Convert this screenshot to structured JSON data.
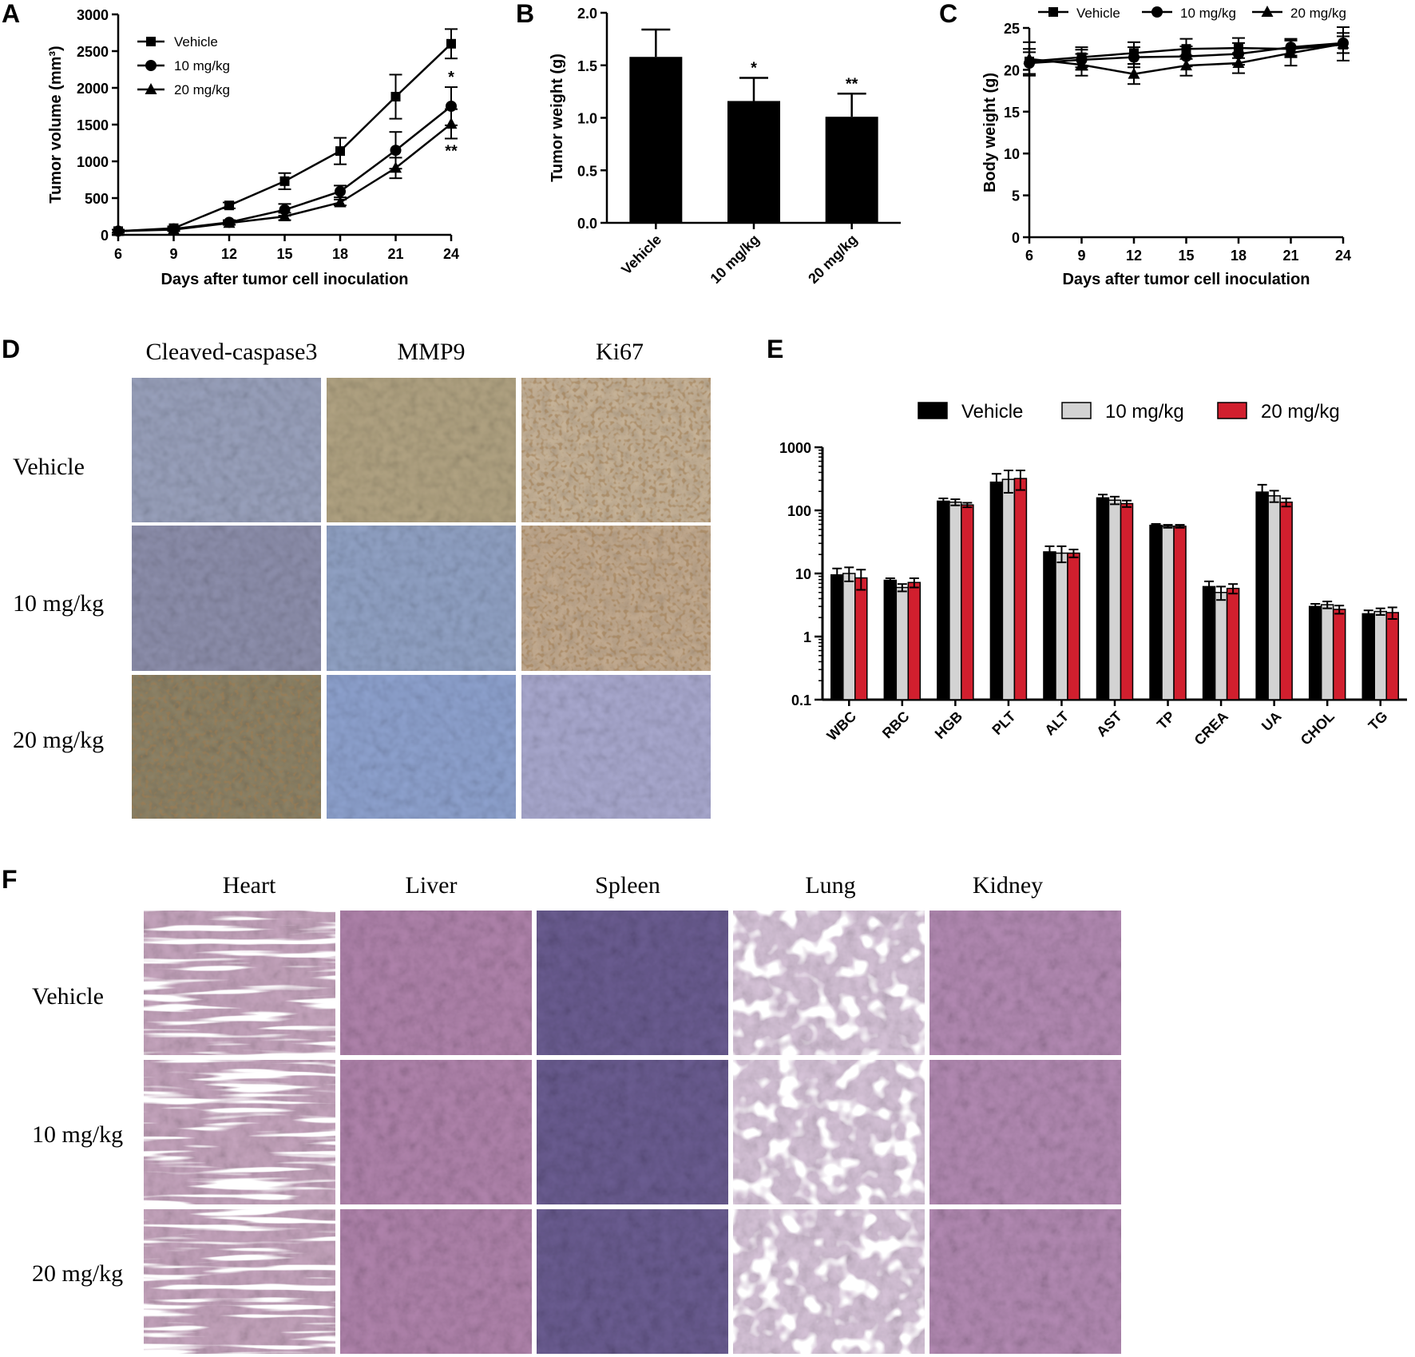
{
  "panels": {
    "a": "A",
    "b": "B",
    "c": "C",
    "d": "D",
    "e": "E",
    "f": "F"
  },
  "colors": {
    "vehicle": "#000000",
    "mid": "#d3d3d3",
    "high": "#d11f2e",
    "ihc_blue": "#8f9fc8",
    "ihc_brown": "#b38a55",
    "he_pink": "#c09bc0",
    "he_purple": "#5e4f88"
  },
  "chart_data": [
    {
      "id": "A",
      "type": "line",
      "xlabel": "Days after tumor cell inoculation",
      "ylabel": "Tumor volume (mm³)",
      "x": [
        6,
        9,
        12,
        15,
        18,
        21,
        24
      ],
      "xlim": [
        6,
        24
      ],
      "ylim": [
        0,
        3000
      ],
      "yticks": [
        0,
        500,
        1000,
        1500,
        2000,
        2500,
        3000
      ],
      "legend_position": "top-left",
      "series": [
        {
          "name": "Vehicle",
          "marker": "square",
          "values": [
            50,
            90,
            400,
            730,
            1140,
            1880,
            2600
          ],
          "errors": [
            20,
            25,
            40,
            110,
            180,
            300,
            200
          ]
        },
        {
          "name": "10 mg/kg",
          "marker": "circle",
          "values": [
            50,
            80,
            170,
            340,
            590,
            1150,
            1750
          ],
          "errors": [
            20,
            20,
            30,
            80,
            80,
            250,
            260
          ]
        },
        {
          "name": "20 mg/kg",
          "marker": "triangle",
          "values": [
            50,
            70,
            160,
            250,
            440,
            910,
            1510
          ],
          "errors": [
            20,
            20,
            25,
            50,
            40,
            140,
            200
          ]
        }
      ],
      "annotations": [
        {
          "series": "10 mg/kg",
          "x": 24,
          "text": "*"
        },
        {
          "series": "20 mg/kg",
          "x": 24,
          "text": "**"
        }
      ]
    },
    {
      "id": "B",
      "type": "bar",
      "ylabel": "Tumor weight (g)",
      "categories": [
        "Vehicle",
        "10 mg/kg",
        "20 mg/kg"
      ],
      "values": [
        1.58,
        1.16,
        1.01
      ],
      "errors": [
        0.26,
        0.22,
        0.22
      ],
      "ylim": [
        0,
        2.0
      ],
      "yticks": [
        "0.0",
        "0.5",
        "1.0",
        "1.5",
        "2.0"
      ],
      "annotations": [
        "",
        "*",
        "**"
      ]
    },
    {
      "id": "C",
      "type": "line",
      "xlabel": "Days after tumor cell inoculation",
      "ylabel": "Body weight (g)",
      "x": [
        6,
        9,
        12,
        15,
        18,
        21,
        24
      ],
      "xlim": [
        6,
        24
      ],
      "ylim": [
        0,
        25
      ],
      "yticks": [
        0,
        5,
        10,
        15,
        20,
        25
      ],
      "legend_position": "top",
      "series": [
        {
          "name": "Vehicle",
          "marker": "square",
          "values": [
            21.0,
            21.5,
            22.0,
            22.5,
            22.6,
            22.5,
            23.0
          ],
          "errors": [
            1.5,
            1.2,
            1.3,
            1.2,
            1.2,
            1.0,
            1.0
          ]
        },
        {
          "name": "10 mg/kg",
          "marker": "circle",
          "values": [
            20.8,
            21.2,
            21.5,
            21.6,
            21.9,
            22.7,
            23.2
          ],
          "errors": [
            1.3,
            1.2,
            1.2,
            1.2,
            1.3,
            1.0,
            1.2
          ]
        },
        {
          "name": "20 mg/kg",
          "marker": "triangle",
          "values": [
            21.3,
            20.6,
            19.5,
            20.5,
            20.8,
            22.0,
            23.1
          ],
          "errors": [
            2.0,
            1.3,
            1.2,
            1.2,
            1.2,
            1.5,
            2.0
          ]
        }
      ]
    },
    {
      "id": "E",
      "type": "bar",
      "scale": "log",
      "categories": [
        "WBC",
        "RBC",
        "HGB",
        "PLT",
        "ALT",
        "AST",
        "TP",
        "CREA",
        "UA",
        "CHOL",
        "TG"
      ],
      "ylim": [
        0.1,
        1000
      ],
      "yticks": [
        "0.1",
        "1",
        "10",
        "100",
        "1000"
      ],
      "legend_position": "top",
      "series": [
        {
          "name": "Vehicle",
          "values": [
            9.5,
            7.8,
            140,
            280,
            22,
            158,
            58,
            6.2,
            195,
            3.0,
            2.3
          ],
          "errors": [
            2.5,
            0.6,
            15,
            100,
            5,
            20,
            3,
            1.3,
            60,
            0.3,
            0.3
          ]
        },
        {
          "name": "10 mg/kg",
          "values": [
            10.0,
            6.0,
            135,
            310,
            21,
            145,
            56,
            5.0,
            170,
            3.2,
            2.5
          ],
          "errors": [
            2.5,
            0.8,
            15,
            120,
            6,
            20,
            3,
            1.2,
            35,
            0.4,
            0.3
          ]
        },
        {
          "name": "20 mg/kg",
          "values": [
            8.5,
            7.2,
            122,
            320,
            21,
            128,
            56,
            5.8,
            135,
            2.7,
            2.4
          ],
          "errors": [
            3.0,
            1.2,
            10,
            110,
            3,
            15,
            3,
            1.0,
            20,
            0.4,
            0.5
          ]
        }
      ]
    }
  ],
  "panel_d": {
    "columns": [
      "Cleaved-caspase3",
      "MMP9",
      "Ki67"
    ],
    "rows": [
      "Vehicle",
      "10 mg/kg",
      "20 mg/kg"
    ]
  },
  "panel_f": {
    "columns": [
      "Heart",
      "Liver",
      "Spleen",
      "Lung",
      "Kidney"
    ],
    "rows": [
      "Vehicle",
      "10 mg/kg",
      "20 mg/kg"
    ]
  }
}
